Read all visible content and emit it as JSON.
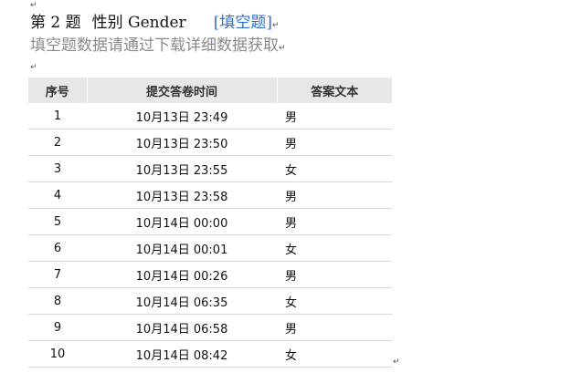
{
  "paragraph_mark": "↵",
  "question": {
    "number_label": "第 2 题",
    "title": "性别 Gender",
    "type_tag": "[填空题]"
  },
  "note": "填空题数据请通过下载详细数据获取",
  "table": {
    "headers": [
      "序号",
      "提交答卷时间",
      "答案文本"
    ],
    "rows": [
      {
        "no": "1",
        "time": "10月13日 23:49",
        "answer": "男"
      },
      {
        "no": "2",
        "time": "10月13日 23:50",
        "answer": "男"
      },
      {
        "no": "3",
        "time": "10月13日 23:55",
        "answer": "女"
      },
      {
        "no": "4",
        "time": "10月13日 23:58",
        "answer": "男"
      },
      {
        "no": "5",
        "time": "10月14日 00:00",
        "answer": "男"
      },
      {
        "no": "6",
        "time": "10月14日 00:01",
        "answer": "女"
      },
      {
        "no": "7",
        "time": "10月14日 00:26",
        "answer": "男"
      },
      {
        "no": "8",
        "time": "10月14日 06:35",
        "answer": "女"
      },
      {
        "no": "9",
        "time": "10月14日 06:58",
        "answer": "男"
      },
      {
        "no": "10",
        "time": "10月14日 08:42",
        "answer": "女"
      }
    ]
  }
}
